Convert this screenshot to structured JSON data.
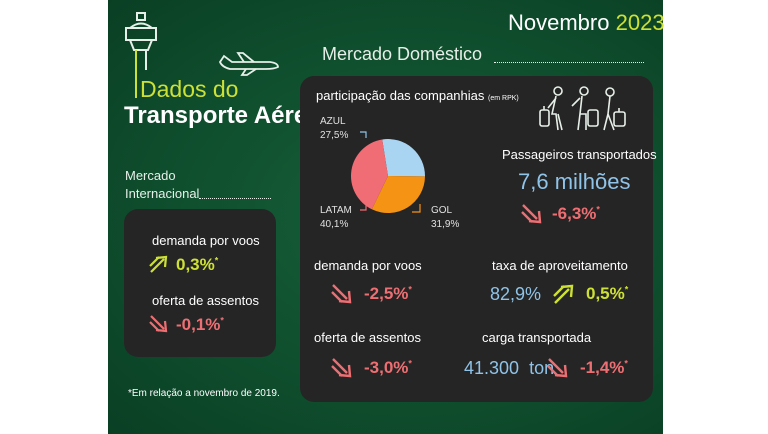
{
  "header": {
    "month": "Novembro",
    "year": "2023"
  },
  "title": {
    "line1": "Dados do",
    "line2": "Transporte Aéreo"
  },
  "domestic": {
    "heading": "Mercado Doméstico",
    "share": {
      "label": "participação das companhias",
      "unit": "(em RPK)",
      "slices": [
        {
          "name": "AZUL",
          "percent_label": "27,5%",
          "value": 27.5,
          "color": "#a9d5f2"
        },
        {
          "name": "GOL",
          "percent_label": "31,9%",
          "value": 31.9,
          "color": "#f59314"
        },
        {
          "name": "LATAM",
          "percent_label": "40,1%",
          "value": 40.1,
          "color": "#f06d75"
        }
      ]
    },
    "passengers": {
      "label": "Passageiros transportados",
      "value": "7,6 milhões",
      "change": "-6,3%",
      "star": "*"
    },
    "demand": {
      "label": "demanda por voos",
      "change": "-2,5%",
      "star": "*"
    },
    "load_factor": {
      "label": "taxa de aproveitamento",
      "value": "82,9%",
      "change": "0,5%",
      "star": "*"
    },
    "supply": {
      "label": "oferta de assentos",
      "change": "-3,0%",
      "star": "*"
    },
    "cargo": {
      "label": "carga transportada",
      "value": "41.300",
      "unit": "ton",
      "change": "-1,4%",
      "star": "*"
    }
  },
  "international": {
    "heading_line1": "Mercado",
    "heading_line2": "Internacional",
    "demand": {
      "label": "demanda por voos",
      "change": "0,3%",
      "star": "*"
    },
    "supply": {
      "label": "oferta de assentos",
      "change": "-0,1%",
      "star": "*"
    }
  },
  "footnote": "*Em relação a novembro de 2019.",
  "colors": {
    "positive": "#cde135",
    "negative": "#ee6f73",
    "accent_blue": "#8fc3e8",
    "background": "#0f4f2e",
    "panel": "#262525"
  },
  "icons": [
    "control-tower-icon",
    "airplane-icon",
    "travelers-icon",
    "arrow-up-icon",
    "arrow-down-icon"
  ]
}
